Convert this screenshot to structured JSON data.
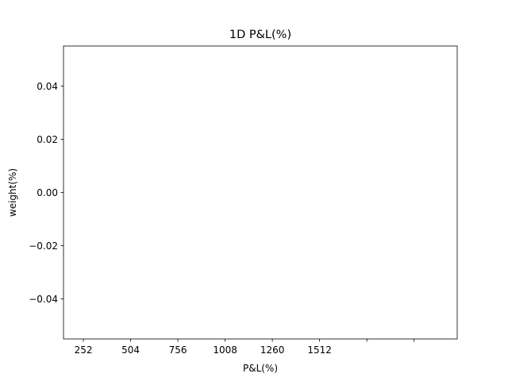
{
  "chart_data": {
    "type": "line",
    "title": "1D P&L(%)",
    "xlabel": "P&L(%)",
    "ylabel": "weight(%)",
    "series": [],
    "xticks": [
      {
        "value": 252,
        "label": "252"
      },
      {
        "value": 504,
        "label": "504"
      },
      {
        "value": 756,
        "label": "756"
      },
      {
        "value": 1008,
        "label": "1008"
      },
      {
        "value": 1260,
        "label": "1260"
      },
      {
        "value": 1512,
        "label": "1512"
      },
      {
        "value": 1764,
        "label": ""
      },
      {
        "value": 2016,
        "label": ""
      }
    ],
    "yticks": [
      {
        "value": 0.04,
        "label": "0.04"
      },
      {
        "value": 0.02,
        "label": "0.02"
      },
      {
        "value": 0.0,
        "label": "0.00"
      },
      {
        "value": -0.02,
        "label": "−0.02"
      },
      {
        "value": -0.04,
        "label": "−0.04"
      }
    ],
    "xlim": [
      146,
      2246
    ],
    "ylim": [
      -0.055,
      0.055
    ],
    "grid": false,
    "legend": "none"
  }
}
